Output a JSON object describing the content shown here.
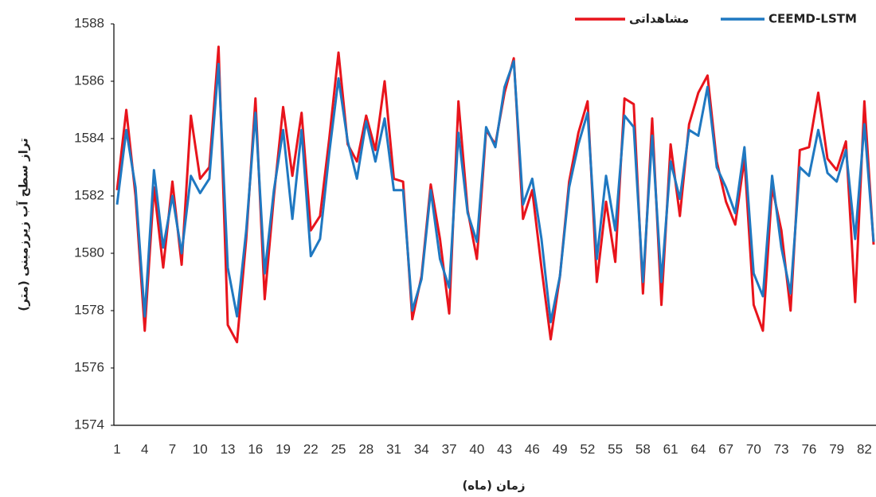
{
  "chart_data": {
    "type": "line",
    "x_label": "زمان (ماه)",
    "y_label": "تراز سطح آب زیرزمینی (متر)",
    "categories": [
      "1",
      null,
      null,
      "4",
      null,
      null,
      "7",
      null,
      null,
      "10",
      null,
      null,
      "13",
      null,
      null,
      "16",
      null,
      null,
      "19",
      null,
      null,
      "22",
      null,
      null,
      "25",
      null,
      null,
      "28",
      null,
      null,
      "31",
      null,
      null,
      "34",
      null,
      null,
      "37",
      null,
      null,
      "40",
      null,
      null,
      "43",
      null,
      null,
      "46",
      null,
      null,
      "49",
      null,
      null,
      "52",
      null,
      null,
      "55",
      null,
      null,
      "58",
      null,
      null,
      "61",
      null,
      null,
      "64",
      null,
      null,
      "67",
      null,
      null,
      "70",
      null,
      null,
      "73",
      null,
      null,
      "76",
      null,
      null,
      "79",
      null,
      null,
      "82",
      null
    ],
    "series": [
      {
        "name": "مشاهداتی",
        "color": "#e8141c",
        "values": [
          1582.2,
          1585.0,
          1582.0,
          1577.3,
          1582.3,
          1579.5,
          1582.5,
          1579.6,
          1584.8,
          1582.6,
          1583.0,
          1587.2,
          1577.5,
          1576.9,
          1580.5,
          1585.4,
          1578.4,
          1582.0,
          1585.1,
          1582.7,
          1584.9,
          1580.8,
          1581.3,
          1584.0,
          1587.0,
          1583.8,
          1583.2,
          1584.8,
          1583.6,
          1586.0,
          1582.6,
          1582.5,
          1577.7,
          1579.2,
          1582.4,
          1580.5,
          1577.9,
          1585.3,
          1581.5,
          1579.8,
          1584.3,
          1583.8,
          1585.6,
          1586.8,
          1581.2,
          1582.2,
          1579.5,
          1577.0,
          1579.2,
          1582.5,
          1584.2,
          1585.3,
          1579.0,
          1581.8,
          1579.7,
          1585.4,
          1585.2,
          1578.6,
          1584.7,
          1578.2,
          1583.8,
          1581.3,
          1584.5,
          1585.6,
          1586.2,
          1583.2,
          1581.8,
          1581.0,
          1583.3,
          1578.2,
          1577.3,
          1582.3,
          1580.8,
          1578.0,
          1583.6,
          1583.7,
          1585.6,
          1583.3,
          1582.9,
          1583.9,
          1578.3,
          1585.3,
          1580.3
        ]
      },
      {
        "name": "CEEMD-LSTM",
        "color": "#1f78c1",
        "values": [
          1581.7,
          1584.3,
          1582.3,
          1577.8,
          1582.9,
          1580.2,
          1582.0,
          1580.0,
          1582.7,
          1582.1,
          1582.6,
          1586.6,
          1579.5,
          1577.8,
          1580.8,
          1584.9,
          1579.3,
          1582.2,
          1584.3,
          1581.2,
          1584.3,
          1579.9,
          1580.5,
          1583.5,
          1586.1,
          1583.9,
          1582.6,
          1584.6,
          1583.2,
          1584.7,
          1582.2,
          1582.2,
          1578.0,
          1579.1,
          1582.2,
          1579.8,
          1578.8,
          1584.2,
          1581.4,
          1580.4,
          1584.4,
          1583.7,
          1585.8,
          1586.7,
          1581.7,
          1582.6,
          1580.5,
          1577.6,
          1579.2,
          1582.3,
          1583.8,
          1584.9,
          1579.8,
          1582.7,
          1580.8,
          1584.8,
          1584.4,
          1579.0,
          1584.1,
          1579.0,
          1583.2,
          1581.9,
          1584.3,
          1584.1,
          1585.8,
          1583.0,
          1582.3,
          1581.4,
          1583.7,
          1579.3,
          1578.5,
          1582.7,
          1580.2,
          1578.6,
          1583.0,
          1582.7,
          1584.3,
          1582.8,
          1582.5,
          1583.6,
          1580.5,
          1584.5,
          1580.4
        ]
      }
    ],
    "ylim": [
      1574,
      1588
    ],
    "yticks": [
      1574,
      1576,
      1578,
      1580,
      1582,
      1584,
      1586,
      1588
    ],
    "grid": false,
    "legend": "top-right"
  }
}
